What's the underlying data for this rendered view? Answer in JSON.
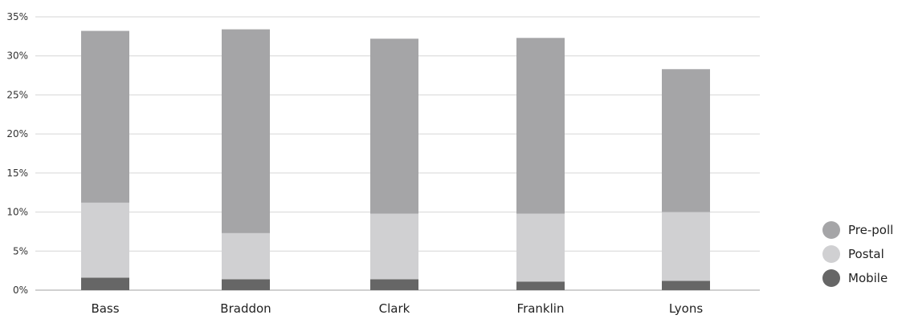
{
  "chart_data": {
    "type": "bar",
    "stacked": true,
    "categories": [
      "Bass",
      "Braddon",
      "Clark",
      "Franklin",
      "Lyons"
    ],
    "series": [
      {
        "name": "Mobile",
        "color": "#666666",
        "values": [
          1.6,
          1.4,
          1.4,
          1.1,
          1.2
        ]
      },
      {
        "name": "Postal",
        "color": "#d0d0d2",
        "values": [
          9.6,
          5.9,
          8.4,
          8.7,
          8.8
        ]
      },
      {
        "name": "Pre-poll",
        "color": "#a5a5a7",
        "values": [
          22.0,
          26.1,
          22.4,
          22.5,
          18.3
        ]
      }
    ],
    "ylim": [
      0,
      35
    ],
    "yticks": [
      "0%",
      "5%",
      "10%",
      "15%",
      "20%",
      "25%",
      "30%",
      "35%"
    ],
    "grid": true,
    "legend_position": "right"
  },
  "legend": [
    {
      "label": "Pre-poll",
      "color": "#a5a5a7"
    },
    {
      "label": "Postal",
      "color": "#d0d0d2"
    },
    {
      "label": "Mobile",
      "color": "#666666"
    }
  ]
}
